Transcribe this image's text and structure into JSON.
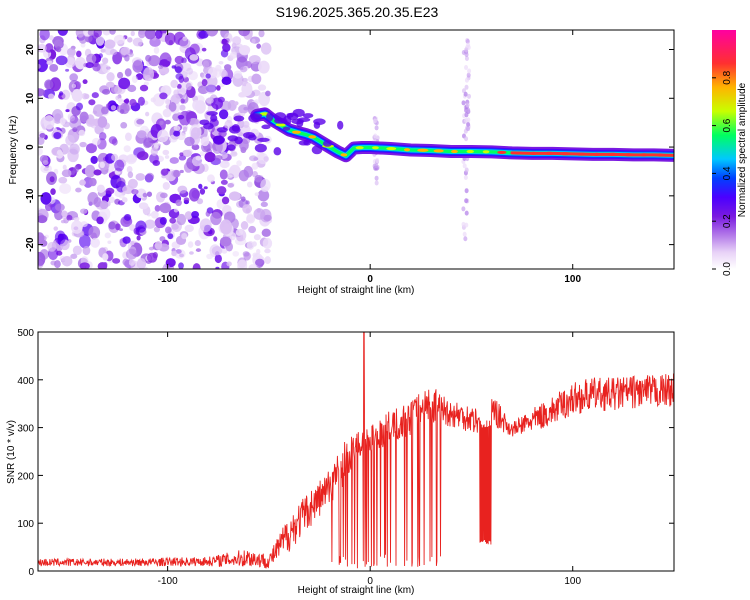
{
  "title": "S196.2025.365.20.35.E23",
  "chart_data": [
    {
      "type": "heatmap",
      "xlabel": "Height of straight line (km)",
      "ylabel": "Frequency (Hz)",
      "xlim": [
        -164,
        150
      ],
      "ylim": [
        -25,
        24
      ],
      "x_ticks": [
        -100,
        0,
        100
      ],
      "y_ticks": [
        20,
        10,
        0,
        -10,
        -20
      ],
      "colorbar": {
        "label": "Normalized spectral amplitude",
        "range": [
          0,
          1
        ],
        "ticks": [
          "0.0",
          "0.2",
          "0.4",
          "0.6",
          "0.8"
        ],
        "tick_values": [
          0,
          0.2,
          0.4,
          0.6,
          0.8
        ],
        "colors": [
          "#ffffff",
          "#e8d2f7",
          "#b47be9",
          "#7a1ae0",
          "#4b00ff",
          "#0040ff",
          "#00c8ff",
          "#00ff60",
          "#c8ff00",
          "#ffb400",
          "#ff3030",
          "#ff00a0"
        ]
      },
      "ridge": {
        "x": [
          -56,
          -52,
          -48,
          -44,
          -40,
          -36,
          -32,
          -28,
          -24,
          -20,
          -16,
          -12,
          -8,
          -4,
          0,
          10,
          20,
          30,
          40,
          50,
          60,
          70,
          80,
          90,
          100,
          110,
          120,
          130,
          140,
          150
        ],
        "y": [
          6.5,
          6.8,
          5.5,
          4.5,
          3.5,
          3.0,
          2.6,
          2.0,
          1.0,
          0.0,
          -1.0,
          -1.8,
          -0.2,
          -0.1,
          -0.1,
          -0.3,
          -0.6,
          -0.7,
          -0.9,
          -0.9,
          -1.0,
          -1.2,
          -1.3,
          -1.3,
          -1.4,
          -1.5,
          -1.5,
          -1.6,
          -1.6,
          -1.7
        ]
      }
    },
    {
      "type": "line",
      "xlabel": "Height of straight line (km)",
      "ylabel": "SNR (10 * v/v)",
      "xlim": [
        -164,
        150
      ],
      "ylim": [
        0,
        500
      ],
      "x_ticks": [
        -100,
        0,
        100
      ],
      "y_ticks": [
        0,
        100,
        200,
        300,
        400,
        500
      ],
      "series": [
        {
          "name": "SNR",
          "color": "#e8221f",
          "x": [
            -164,
            -120,
            -80,
            -60,
            -50,
            -40,
            -30,
            -20,
            -12,
            -6,
            -3,
            0,
            5,
            10,
            20,
            25,
            30,
            40,
            50,
            54,
            58,
            60,
            62,
            70,
            80,
            90,
            100,
            110,
            120,
            130,
            140,
            150
          ],
          "center": [
            18,
            18,
            20,
            28,
            20,
            80,
            130,
            175,
            230,
            265,
            270,
            270,
            290,
            300,
            320,
            345,
            350,
            330,
            320,
            310,
            300,
            345,
            330,
            295,
            315,
            335,
            360,
            370,
            370,
            375,
            375,
            380
          ],
          "spread": [
            8,
            8,
            10,
            20,
            15,
            40,
            40,
            40,
            50,
            30,
            30,
            30,
            35,
            35,
            35,
            35,
            40,
            30,
            30,
            30,
            30,
            30,
            30,
            15,
            25,
            30,
            35,
            35,
            35,
            35,
            35,
            35
          ]
        }
      ],
      "annotations": [
        {
          "x": -3,
          "y": 500,
          "note": "spike"
        },
        {
          "x": 55,
          "x_end": 60,
          "y_low": 55,
          "y_high": 310,
          "note": "dropout band"
        }
      ]
    }
  ]
}
